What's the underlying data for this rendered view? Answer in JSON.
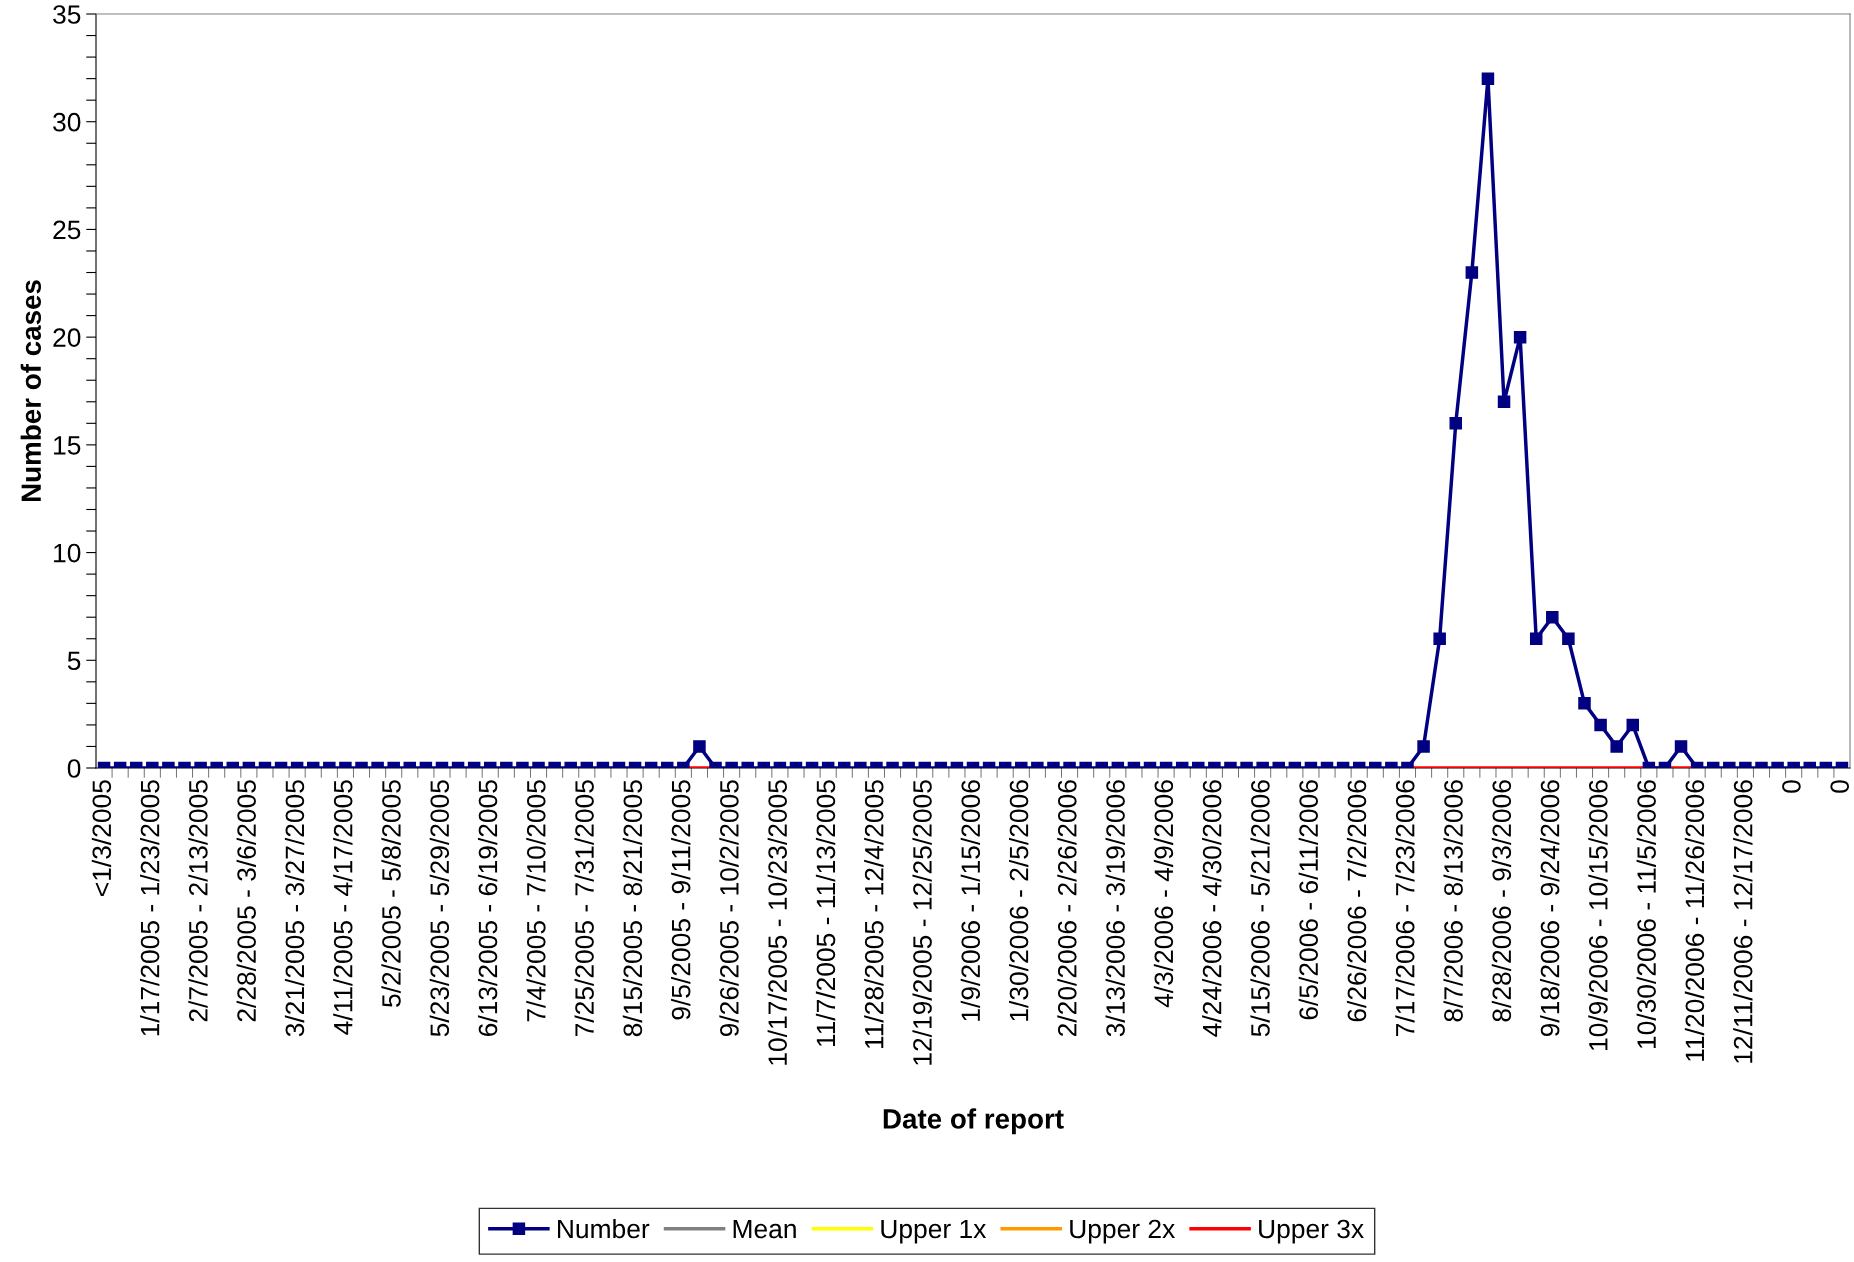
{
  "chart_data": {
    "type": "line",
    "xlabel": "Date of report",
    "ylabel": "Number of cases",
    "categories": [
      "<1/3/2005",
      null,
      null,
      "1/17/2005 - 1/23/2005",
      null,
      null,
      "2/7/2005 - 2/13/2005",
      null,
      null,
      "2/28/2005 - 3/6/2005",
      null,
      null,
      "3/21/2005 - 3/27/2005",
      null,
      null,
      "4/11/2005 - 4/17/2005",
      null,
      null,
      "5/2/2005 - 5/8/2005",
      null,
      null,
      "5/23/2005 - 5/29/2005",
      null,
      null,
      "6/13/2005 - 6/19/2005",
      null,
      null,
      "7/4/2005 - 7/10/2005",
      null,
      null,
      "7/25/2005 - 7/31/2005",
      null,
      null,
      "8/15/2005 - 8/21/2005",
      null,
      null,
      "9/5/2005 - 9/11/2005",
      null,
      null,
      "9/26/2005 - 10/2/2005",
      null,
      null,
      "10/17/2005 - 10/23/2005",
      null,
      null,
      "11/7/2005 - 11/13/2005",
      null,
      null,
      "11/28/2005 - 12/4/2005",
      null,
      null,
      "12/19/2005 - 12/25/2005",
      null,
      null,
      "1/9/2006 - 1/15/2006",
      null,
      null,
      "1/30/2006 - 2/5/2006",
      null,
      null,
      "2/20/2006 - 2/26/2006",
      null,
      null,
      "3/13/2006 - 3/19/2006",
      null,
      null,
      "4/3/2006 - 4/9/2006",
      null,
      null,
      "4/24/2006 - 4/30/2006",
      null,
      null,
      "5/15/2006 - 5/21/2006",
      null,
      null,
      "6/5/2006 - 6/11/2006",
      null,
      null,
      "6/26/2006 - 7/2/2006",
      null,
      null,
      "7/17/2006 - 7/23/2006",
      null,
      null,
      "8/7/2006 - 8/13/2006",
      null,
      null,
      "8/28/2006 - 9/3/2006",
      null,
      null,
      "9/18/2006 - 9/24/2006",
      null,
      null,
      "10/9/2006 - 10/15/2006",
      null,
      null,
      "10/30/2006 - 11/5/2006",
      null,
      null,
      "11/20/2006 - 11/26/2006",
      null,
      null,
      "12/11/2006 - 12/17/2006",
      null,
      null,
      "0",
      null,
      null,
      "0"
    ],
    "series": [
      {
        "name": "Number",
        "color": "#000080",
        "marker": "square",
        "values": [
          0,
          0,
          0,
          0,
          0,
          0,
          0,
          0,
          0,
          0,
          0,
          0,
          0,
          0,
          0,
          0,
          0,
          0,
          0,
          0,
          0,
          0,
          0,
          0,
          0,
          0,
          0,
          0,
          0,
          0,
          0,
          0,
          0,
          0,
          0,
          0,
          0,
          1,
          0,
          0,
          0,
          0,
          0,
          0,
          0,
          0,
          0,
          0,
          0,
          0,
          0,
          0,
          0,
          0,
          0,
          0,
          0,
          0,
          0,
          0,
          0,
          0,
          0,
          0,
          0,
          0,
          0,
          0,
          0,
          0,
          0,
          0,
          0,
          0,
          0,
          0,
          0,
          0,
          0,
          0,
          0,
          0,
          1,
          6,
          16,
          23,
          32,
          17,
          20,
          6,
          7,
          6,
          3,
          2,
          1,
          2,
          0,
          0,
          1,
          0,
          0,
          0,
          0,
          0,
          0,
          0,
          0,
          0,
          0
        ]
      },
      {
        "name": "Mean",
        "color": "#808080",
        "marker": "none",
        "values": [
          null,
          null,
          null,
          null,
          null,
          null,
          null,
          null,
          null,
          null,
          null,
          null,
          null,
          null,
          null,
          null,
          null,
          null,
          null,
          null,
          null,
          null,
          null,
          null,
          null,
          null,
          null,
          null,
          null,
          null,
          null,
          null,
          null,
          null,
          null,
          null,
          null,
          null,
          null,
          null,
          null,
          null,
          null,
          null,
          null,
          null,
          null,
          null,
          null,
          null,
          null,
          null,
          null,
          null,
          null,
          null,
          null,
          null,
          null,
          null,
          null,
          null,
          null,
          null,
          null,
          null,
          null,
          null,
          null,
          null,
          null,
          null,
          null,
          null,
          null,
          null,
          null,
          null,
          null,
          null,
          null,
          null,
          null,
          null,
          null,
          null,
          null,
          null,
          null,
          null,
          null,
          null,
          null,
          null,
          null,
          null,
          null,
          null,
          null,
          null,
          null,
          null,
          null,
          null,
          null,
          null,
          null,
          null,
          null
        ]
      },
      {
        "name": "Upper 1x",
        "color": "#ffff00",
        "marker": "none",
        "values": [
          null,
          null,
          null,
          null,
          null,
          null,
          null,
          null,
          null,
          null,
          null,
          null,
          null,
          null,
          null,
          null,
          null,
          null,
          null,
          null,
          null,
          null,
          null,
          null,
          null,
          null,
          null,
          null,
          null,
          null,
          null,
          null,
          null,
          null,
          null,
          null,
          null,
          null,
          null,
          null,
          null,
          null,
          null,
          null,
          null,
          null,
          null,
          null,
          null,
          null,
          null,
          null,
          null,
          null,
          null,
          null,
          null,
          null,
          null,
          null,
          null,
          null,
          null,
          null,
          null,
          null,
          null,
          null,
          null,
          null,
          null,
          null,
          null,
          null,
          null,
          null,
          null,
          null,
          null,
          null,
          null,
          null,
          null,
          null,
          null,
          null,
          null,
          null,
          null,
          null,
          null,
          null,
          null,
          null,
          null,
          null,
          null,
          null,
          null,
          null,
          null,
          null,
          null,
          null,
          null,
          null,
          null,
          null,
          null
        ]
      },
      {
        "name": "Upper 2x",
        "color": "#ff9900",
        "marker": "none",
        "values": [
          null,
          null,
          null,
          null,
          null,
          null,
          null,
          null,
          null,
          null,
          null,
          null,
          null,
          null,
          null,
          null,
          null,
          null,
          null,
          null,
          null,
          null,
          null,
          null,
          null,
          null,
          null,
          null,
          null,
          null,
          null,
          null,
          null,
          null,
          null,
          null,
          null,
          null,
          null,
          null,
          null,
          null,
          null,
          null,
          null,
          null,
          null,
          null,
          null,
          null,
          null,
          null,
          null,
          null,
          null,
          null,
          null,
          null,
          null,
          null,
          null,
          null,
          null,
          null,
          null,
          null,
          null,
          null,
          null,
          null,
          null,
          null,
          null,
          null,
          null,
          null,
          null,
          null,
          null,
          null,
          null,
          null,
          null,
          null,
          null,
          null,
          null,
          null,
          null,
          null,
          null,
          null,
          null,
          null,
          null,
          null,
          null,
          null,
          null,
          null,
          null,
          null,
          null,
          null,
          null,
          null,
          null,
          null,
          null
        ]
      },
      {
        "name": "Upper 3x",
        "color": "#ff0000",
        "marker": "none",
        "values": [
          null,
          null,
          null,
          null,
          null,
          null,
          null,
          null,
          null,
          null,
          null,
          null,
          null,
          null,
          null,
          null,
          null,
          null,
          null,
          null,
          null,
          null,
          null,
          null,
          null,
          null,
          null,
          null,
          null,
          null,
          null,
          null,
          null,
          null,
          null,
          null,
          0,
          0,
          0,
          null,
          null,
          null,
          null,
          null,
          null,
          null,
          null,
          null,
          null,
          null,
          null,
          null,
          null,
          null,
          null,
          null,
          null,
          null,
          null,
          null,
          null,
          null,
          null,
          null,
          null,
          null,
          null,
          null,
          null,
          null,
          null,
          null,
          null,
          null,
          null,
          null,
          null,
          null,
          null,
          null,
          null,
          0,
          0,
          0,
          0,
          0,
          0,
          0,
          0,
          0,
          0,
          0,
          0,
          0,
          0,
          0,
          0,
          0,
          0,
          0,
          null,
          null,
          null,
          null,
          null,
          null,
          null,
          null,
          null
        ]
      }
    ],
    "ylim": [
      0,
      35
    ],
    "yticks": [
      0,
      {
        "value": 1,
        "label": null
      },
      {
        "value": 2,
        "label": null
      },
      {
        "value": 3,
        "label": null
      },
      {
        "value": 4,
        "label": null
      },
      5,
      {
        "value": 6,
        "label": null
      },
      {
        "value": 7,
        "label": null
      },
      {
        "value": 8,
        "label": null
      },
      {
        "value": 9,
        "label": null
      },
      10,
      {
        "value": 11,
        "label": null
      },
      {
        "value": 12,
        "label": null
      },
      {
        "value": 13,
        "label": null
      },
      {
        "value": 14,
        "label": null
      },
      15,
      {
        "value": 16,
        "label": null
      },
      {
        "value": 17,
        "label": null
      },
      {
        "value": 18,
        "label": null
      },
      {
        "value": 19,
        "label": null
      },
      20,
      {
        "value": 21,
        "label": null
      },
      {
        "value": 22,
        "label": null
      },
      {
        "value": 23,
        "label": null
      },
      {
        "value": 24,
        "label": null
      },
      25,
      {
        "value": 26,
        "label": null
      },
      {
        "value": 27,
        "label": null
      },
      {
        "value": 28,
        "label": null
      },
      {
        "value": 29,
        "label": null
      },
      30,
      {
        "value": 31,
        "label": null
      },
      {
        "value": 32,
        "label": null
      },
      {
        "value": 33,
        "label": null
      },
      {
        "value": 34,
        "label": null
      },
      35
    ],
    "grid": false,
    "legend": "bottom"
  }
}
